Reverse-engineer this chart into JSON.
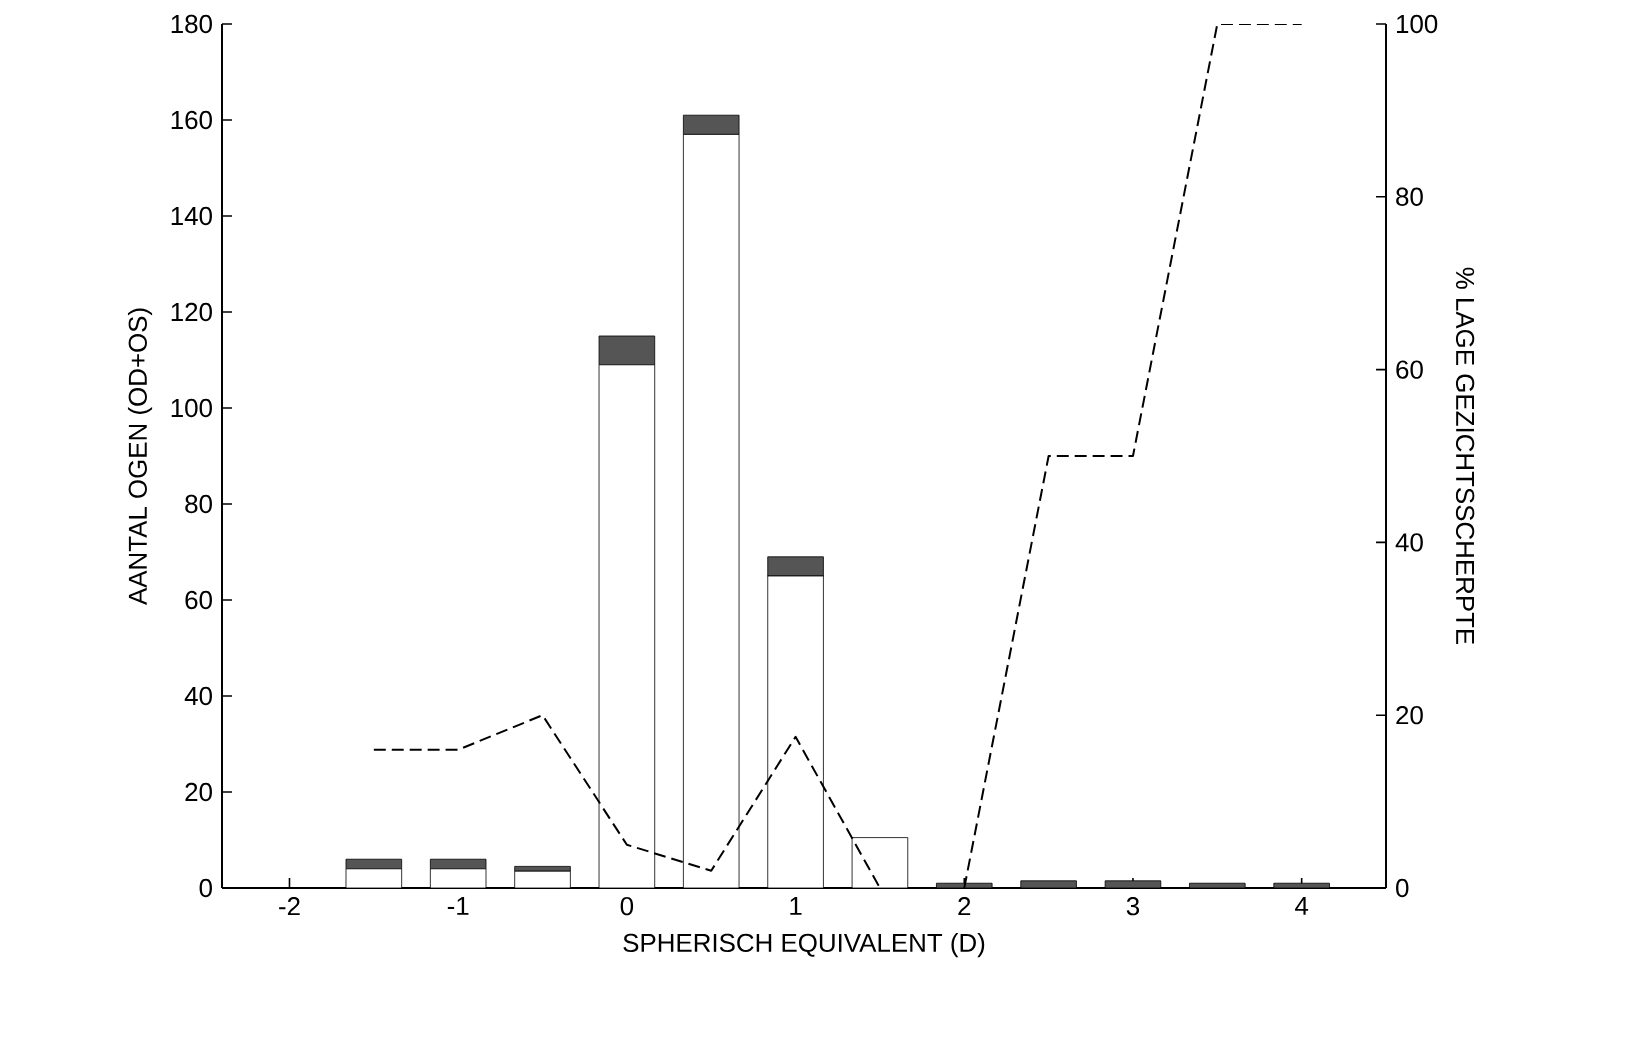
{
  "chart_data": {
    "type": "bar",
    "stacked": true,
    "xlabel": "SPHERISCH EQUIVALENT (D)",
    "ylabel": "AANTAL OGEN (OD+OS)",
    "y2label": "% LAGE GEZICHTSSCHERPTE",
    "x": [
      -1.5,
      -1,
      -0.5,
      0,
      0.5,
      1,
      1.5,
      2,
      2.5,
      3,
      3.5,
      4
    ],
    "series": [
      {
        "color": "#ffffff",
        "values": [
          4,
          4,
          3.5,
          109,
          157,
          65,
          10.5,
          0,
          0,
          0,
          0,
          0
        ]
      },
      {
        "color": "#555555",
        "values": [
          2,
          2,
          1,
          6,
          4,
          4,
          0,
          1,
          1.5,
          1.5,
          1,
          1
        ]
      },
      {
        "type": "line",
        "axis": "y2",
        "color": "#000000",
        "line_style": "dashed",
        "x": [
          -1.5,
          -1,
          -0.5,
          0,
          0.5,
          1,
          1.5
        ],
        "values": [
          16,
          16,
          20,
          5,
          2,
          17.5,
          0
        ]
      },
      {
        "type": "line",
        "axis": "y2",
        "color": "#000000",
        "line_style": "dashed",
        "x": [
          2,
          2.5,
          3,
          3.5,
          4
        ],
        "values": [
          0,
          50,
          50,
          100,
          100
        ]
      }
    ],
    "xlim": [
      -2.4,
      4.5
    ],
    "xticks": [
      -2,
      -1,
      0,
      1,
      2,
      3,
      4
    ],
    "ylim": [
      0,
      180
    ],
    "yticks": [
      0,
      20,
      40,
      60,
      80,
      100,
      120,
      140,
      160,
      180
    ],
    "y2lim": [
      0,
      100
    ],
    "y2ticks": [
      0,
      20,
      40,
      60,
      80,
      100
    ]
  }
}
